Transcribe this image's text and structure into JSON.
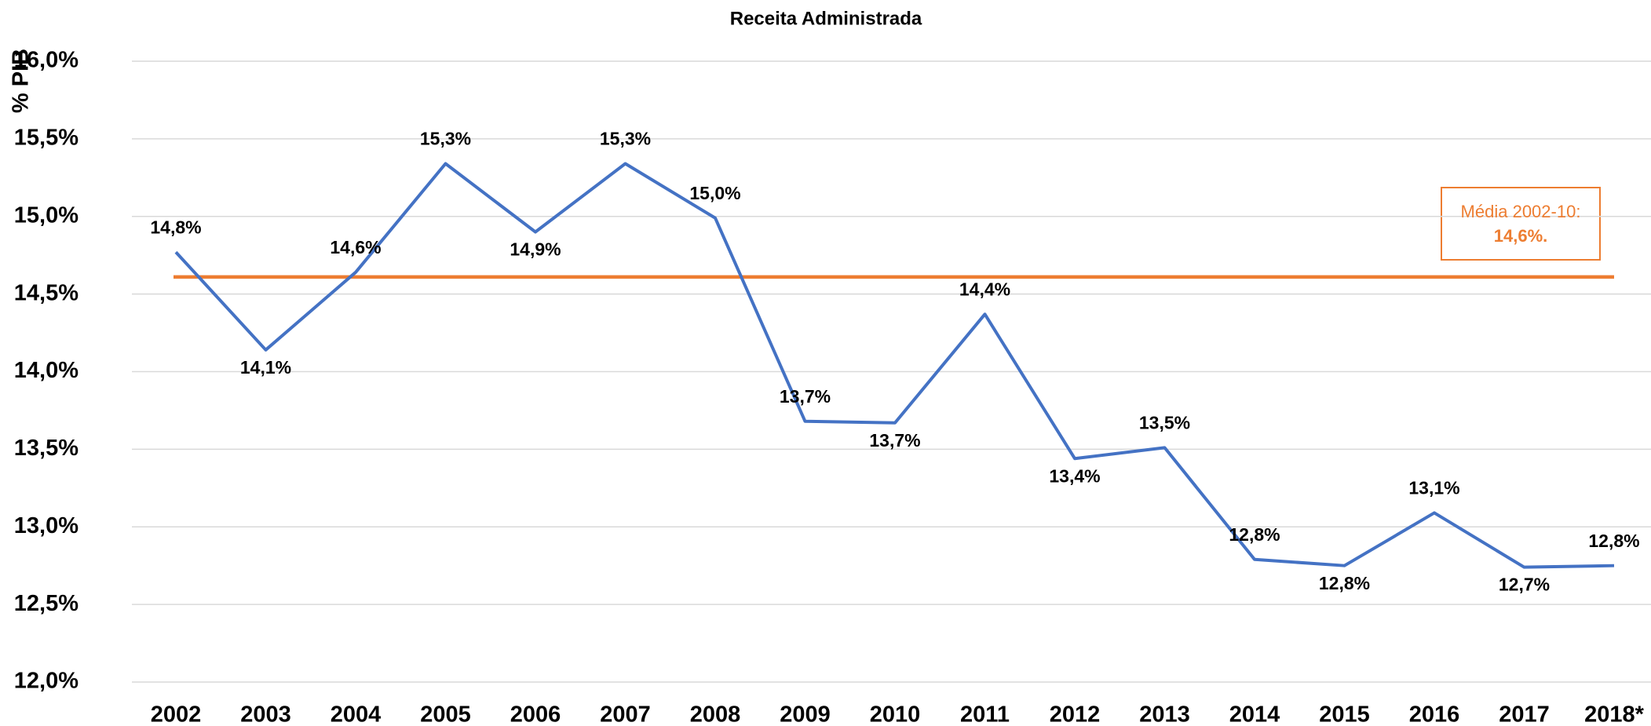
{
  "chart_data": {
    "type": "line",
    "title": "Receita Administrada",
    "y_label": "% PIB",
    "categories": [
      "2002",
      "2003",
      "2004",
      "2005",
      "2006",
      "2007",
      "2008",
      "2009",
      "2010",
      "2011",
      "2012",
      "2013",
      "2014",
      "2015",
      "2016",
      "2017",
      "2018*"
    ],
    "series": [
      {
        "name": "Receita Administrada",
        "color": "#4472c4",
        "values": [
          14.77,
          14.14,
          14.64,
          15.34,
          14.9,
          15.34,
          14.99,
          13.68,
          13.67,
          14.37,
          13.44,
          13.51,
          12.79,
          12.75,
          13.09,
          12.74,
          12.75
        ],
        "value_labels": [
          "14,8%",
          "14,1%",
          "14,6%",
          "15,3%",
          "14,9%",
          "15,3%",
          "15,0%",
          "13,7%",
          "13,7%",
          "14,4%",
          "13,4%",
          "13,5%",
          "12,8%",
          "12,8%",
          "13,1%",
          "12,7%",
          "12,8%"
        ]
      }
    ],
    "average": {
      "value": 14.61,
      "color": "#ed7d31",
      "text": "Média 2002-10:",
      "value_label": "14,6%."
    },
    "ylim": [
      12,
      16
    ],
    "yticks": [
      {
        "value": 12,
        "label": "12,0%"
      },
      {
        "value": 12.5,
        "label": "12,5%"
      },
      {
        "value": 13,
        "label": "13,0%"
      },
      {
        "value": 13.5,
        "label": "13,5%"
      },
      {
        "value": 14,
        "label": "14,0%"
      },
      {
        "value": 14.5,
        "label": "14,5%"
      },
      {
        "value": 15,
        "label": "15,0%"
      },
      {
        "value": 15.5,
        "label": "15,5%"
      },
      {
        "value": 16,
        "label": "16,0%"
      }
    ],
    "grid": true
  }
}
